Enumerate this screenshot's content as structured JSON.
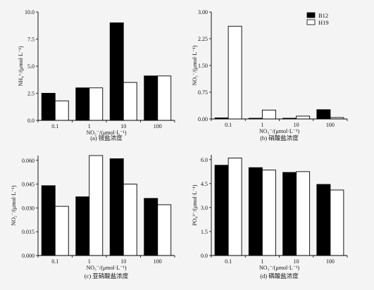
{
  "legend": {
    "items": [
      {
        "name": "B12",
        "color": "#000000"
      },
      {
        "name": "H19",
        "color": "#ffffff"
      }
    ]
  },
  "chart_data": [
    {
      "type": "bar",
      "caption": "(a) 铵盐浓度",
      "xlabel": "NO₃⁻/(μmol·L⁻¹)",
      "ylabel": "NH₄⁺/(μmol·L⁻¹)",
      "categories": [
        "0.1",
        "1",
        "10",
        "100"
      ],
      "yticks": [
        "0.0",
        "2.5",
        "5.0",
        "7.5",
        "10.0"
      ],
      "ylim": [
        0,
        10
      ],
      "series": [
        {
          "name": "B12",
          "values": [
            2.5,
            3.0,
            9.0,
            4.1
          ]
        },
        {
          "name": "H19",
          "values": [
            1.8,
            3.0,
            3.5,
            4.1
          ]
        }
      ]
    },
    {
      "type": "bar",
      "caption": "(b) 硝酸盐浓度",
      "xlabel": "NO₃⁻/(μmol·L⁻¹)",
      "ylabel": "NO₃⁻/(μmol·L⁻¹)",
      "categories": [
        "0.1",
        "1",
        "10",
        "100"
      ],
      "yticks": [
        "0.00",
        "0.75",
        "1.50",
        "2.25",
        "3.00"
      ],
      "ylim": [
        0,
        3.0
      ],
      "series": [
        {
          "name": "B12",
          "values": [
            0.03,
            0.02,
            0.02,
            0.26
          ]
        },
        {
          "name": "H19",
          "values": [
            2.6,
            0.25,
            0.08,
            0.04
          ]
        }
      ]
    },
    {
      "type": "bar",
      "caption": "(c) 亚硝酸盐浓度",
      "xlabel": "NO₃⁻/(μmol·L⁻¹)",
      "ylabel": "NO₂⁻/(μmol·L⁻¹)",
      "categories": [
        "0.1",
        "1",
        "10",
        "100"
      ],
      "yticks": [
        "0.000",
        "0.015",
        "0.030",
        "0.045",
        "0.060"
      ],
      "ylim": [
        0,
        0.063
      ],
      "series": [
        {
          "name": "B12",
          "values": [
            0.044,
            0.037,
            0.061,
            0.036
          ]
        },
        {
          "name": "H19",
          "values": [
            0.031,
            0.063,
            0.045,
            0.032
          ]
        }
      ]
    },
    {
      "type": "bar",
      "caption": "(d) 磷酸盐浓度",
      "xlabel": "NO₃⁻/(μmol·L⁻¹)",
      "ylabel": "PO₄³⁻/(μmol·L⁻¹)",
      "categories": [
        "0.1",
        "1",
        "10",
        "100"
      ],
      "yticks": [
        "0.0",
        "1.5",
        "3.0",
        "4.5",
        "6.0"
      ],
      "ylim": [
        0,
        6.3
      ],
      "series": [
        {
          "name": "B12",
          "values": [
            5.65,
            5.5,
            5.2,
            4.45
          ]
        },
        {
          "name": "H19",
          "values": [
            6.1,
            5.35,
            5.25,
            4.1
          ]
        }
      ]
    }
  ]
}
